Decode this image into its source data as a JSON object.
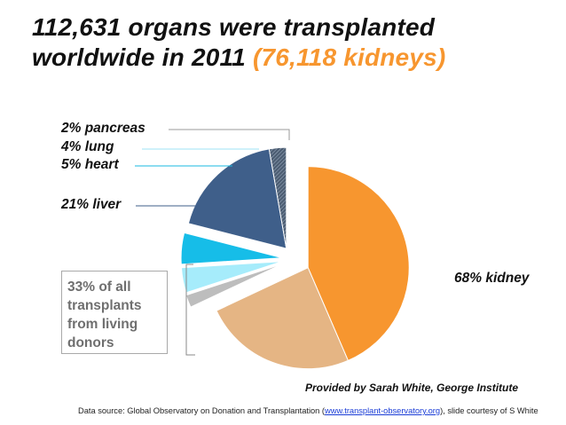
{
  "title": {
    "line1": "112,631 organs  were transplanted",
    "line2_prefix": "worldwide in 2011 ",
    "line2_highlight": "(76,118 kidneys)"
  },
  "living_note": "33% of all transplants from living donors",
  "credit": "Provided by Sarah White, George Institute",
  "source": {
    "prefix": "Data source: Global Observatory on Donation and Transplantation (",
    "link": "www.transplant-observatory.org",
    "suffix": "), slide courtesy of S White"
  },
  "colors": {
    "kidney": "#f7962f",
    "kidney_living": "#e5b584",
    "liver": "#3f5f8a",
    "liver_living": "#4d5e73",
    "heart": "#16bde8",
    "lung": "#a6ecfb",
    "pancreas": "#bdbdbd",
    "title_highlight": "#f7962f"
  },
  "chart_data": {
    "type": "pie",
    "title": "112,631 organs  were transplanted worldwide in 2011 (76,118 kidneys)",
    "slices": [
      {
        "label": "68% kidney",
        "value": 68,
        "color": "#f7962f",
        "living_share": 0.36
      },
      {
        "label": "2% pancreas",
        "value": 2,
        "color": "#bdbdbd",
        "living_share": 0
      },
      {
        "label": "4% lung",
        "value": 4,
        "color": "#a6ecfb",
        "living_share": 0
      },
      {
        "label": "5% heart",
        "value": 5,
        "color": "#16bde8",
        "living_share": 0
      },
      {
        "label": "21% liver",
        "value": 21,
        "color": "#3f5f8a",
        "living_share": 0.13
      }
    ],
    "annotations": [
      "33% of all transplants from living donors"
    ]
  }
}
